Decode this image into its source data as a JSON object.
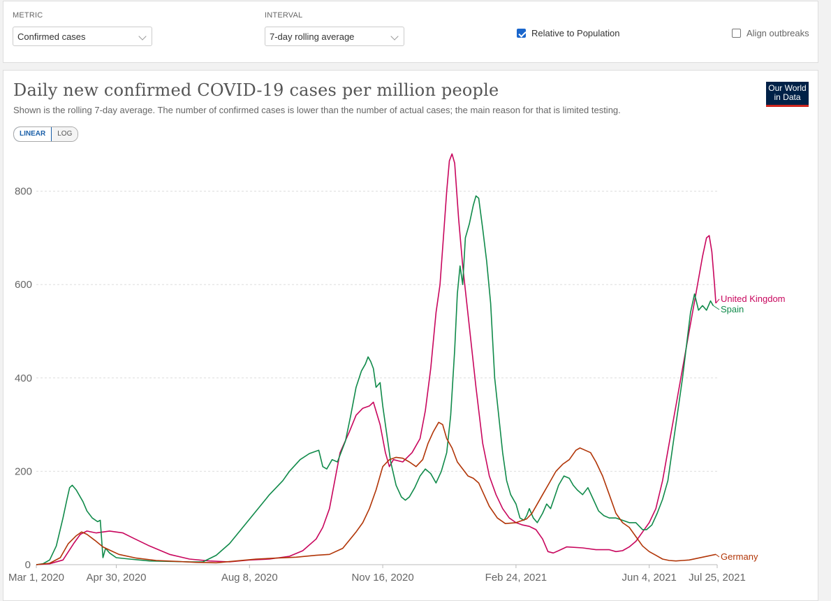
{
  "controls": {
    "metric_label": "METRIC",
    "metric_value": "Confirmed cases",
    "interval_label": "INTERVAL",
    "interval_value": "7-day rolling average",
    "relative_label": "Relative to Population",
    "align_label": "Align outbreaks"
  },
  "header": {
    "title": "Daily new confirmed COVID-19 cases per million people",
    "subtitle": "Shown is the rolling 7-day average. The number of confirmed cases is lower than the number of actual cases; the main reason for that is limited testing.",
    "logo_line1": "Our World",
    "logo_line2": "in Data"
  },
  "scale": {
    "linear": "LINEAR",
    "log": "LOG"
  },
  "colors": {
    "uk": "#c8065d",
    "spain": "#108a4a",
    "germany": "#b13507"
  },
  "chart_data": {
    "type": "line",
    "title": "Daily new confirmed COVID-19 cases per million people",
    "x_ticks": [
      "Mar 1, 2020",
      "Apr 30, 2020",
      "Aug 8, 2020",
      "Nov 16, 2020",
      "Feb 24, 2021",
      "Jun 4, 2021",
      "Jul 25, 2021"
    ],
    "x_tick_days": [
      0,
      60,
      160,
      260,
      360,
      460,
      511
    ],
    "x_range": [
      "Mar 1, 2020",
      "Jul 25, 2021"
    ],
    "y_ticks": [
      0,
      200,
      400,
      600,
      800
    ],
    "ylim": [
      0,
      900
    ],
    "grid": true,
    "legend": "end-of-line labels",
    "series": [
      {
        "name": "United Kingdom",
        "color": "#c8065d",
        "points": [
          [
            0,
            0
          ],
          [
            10,
            2
          ],
          [
            20,
            10
          ],
          [
            28,
            45
          ],
          [
            33,
            65
          ],
          [
            38,
            72
          ],
          [
            45,
            68
          ],
          [
            55,
            72
          ],
          [
            65,
            68
          ],
          [
            72,
            58
          ],
          [
            85,
            40
          ],
          [
            100,
            22
          ],
          [
            115,
            12
          ],
          [
            130,
            8
          ],
          [
            145,
            6
          ],
          [
            160,
            10
          ],
          [
            175,
            12
          ],
          [
            190,
            18
          ],
          [
            200,
            30
          ],
          [
            210,
            55
          ],
          [
            215,
            80
          ],
          [
            220,
            120
          ],
          [
            224,
            180
          ],
          [
            228,
            240
          ],
          [
            235,
            285
          ],
          [
            240,
            320
          ],
          [
            245,
            335
          ],
          [
            250,
            340
          ],
          [
            253,
            348
          ],
          [
            258,
            300
          ],
          [
            262,
            240
          ],
          [
            265,
            210
          ],
          [
            268,
            225
          ],
          [
            275,
            220
          ],
          [
            282,
            240
          ],
          [
            288,
            270
          ],
          [
            292,
            330
          ],
          [
            296,
            420
          ],
          [
            300,
            540
          ],
          [
            303,
            600
          ],
          [
            306,
            720
          ],
          [
            308,
            800
          ],
          [
            310,
            865
          ],
          [
            312,
            880
          ],
          [
            314,
            860
          ],
          [
            317,
            740
          ],
          [
            320,
            640
          ],
          [
            325,
            510
          ],
          [
            330,
            380
          ],
          [
            335,
            260
          ],
          [
            340,
            190
          ],
          [
            345,
            150
          ],
          [
            350,
            120
          ],
          [
            355,
            100
          ],
          [
            360,
            90
          ],
          [
            365,
            85
          ],
          [
            370,
            82
          ],
          [
            375,
            75
          ],
          [
            380,
            55
          ],
          [
            384,
            28
          ],
          [
            388,
            25
          ],
          [
            392,
            30
          ],
          [
            398,
            38
          ],
          [
            410,
            36
          ],
          [
            420,
            32
          ],
          [
            430,
            32
          ],
          [
            435,
            28
          ],
          [
            440,
            30
          ],
          [
            445,
            38
          ],
          [
            450,
            50
          ],
          [
            455,
            70
          ],
          [
            460,
            90
          ],
          [
            465,
            120
          ],
          [
            470,
            180
          ],
          [
            475,
            260
          ],
          [
            480,
            340
          ],
          [
            485,
            420
          ],
          [
            490,
            500
          ],
          [
            495,
            580
          ],
          [
            500,
            660
          ],
          [
            503,
            700
          ],
          [
            505,
            705
          ],
          [
            507,
            670
          ],
          [
            509,
            600
          ],
          [
            510,
            560
          ]
        ]
      },
      {
        "name": "Spain",
        "color": "#108a4a",
        "points": [
          [
            0,
            0
          ],
          [
            5,
            2
          ],
          [
            10,
            10
          ],
          [
            15,
            40
          ],
          [
            20,
            100
          ],
          [
            23,
            140
          ],
          [
            25,
            165
          ],
          [
            27,
            170
          ],
          [
            30,
            160
          ],
          [
            35,
            135
          ],
          [
            38,
            115
          ],
          [
            42,
            100
          ],
          [
            46,
            92
          ],
          [
            48,
            95
          ],
          [
            50,
            15
          ],
          [
            52,
            35
          ],
          [
            55,
            25
          ],
          [
            60,
            15
          ],
          [
            70,
            12
          ],
          [
            85,
            8
          ],
          [
            100,
            7
          ],
          [
            115,
            6
          ],
          [
            125,
            6
          ],
          [
            135,
            20
          ],
          [
            145,
            45
          ],
          [
            155,
            80
          ],
          [
            165,
            115
          ],
          [
            175,
            150
          ],
          [
            185,
            180
          ],
          [
            190,
            200
          ],
          [
            198,
            225
          ],
          [
            205,
            238
          ],
          [
            212,
            245
          ],
          [
            215,
            210
          ],
          [
            218,
            205
          ],
          [
            222,
            225
          ],
          [
            226,
            220
          ],
          [
            232,
            265
          ],
          [
            236,
            320
          ],
          [
            240,
            380
          ],
          [
            244,
            415
          ],
          [
            247,
            430
          ],
          [
            249,
            445
          ],
          [
            251,
            435
          ],
          [
            253,
            420
          ],
          [
            255,
            380
          ],
          [
            258,
            390
          ],
          [
            260,
            340
          ],
          [
            263,
            280
          ],
          [
            266,
            220
          ],
          [
            270,
            170
          ],
          [
            274,
            145
          ],
          [
            277,
            138
          ],
          [
            280,
            145
          ],
          [
            284,
            165
          ],
          [
            288,
            190
          ],
          [
            292,
            205
          ],
          [
            296,
            195
          ],
          [
            300,
            175
          ],
          [
            304,
            200
          ],
          [
            308,
            240
          ],
          [
            311,
            320
          ],
          [
            314,
            460
          ],
          [
            316,
            580
          ],
          [
            318,
            640
          ],
          [
            320,
            600
          ],
          [
            322,
            700
          ],
          [
            325,
            730
          ],
          [
            328,
            770
          ],
          [
            330,
            790
          ],
          [
            332,
            785
          ],
          [
            335,
            720
          ],
          [
            338,
            650
          ],
          [
            341,
            560
          ],
          [
            344,
            400
          ],
          [
            347,
            320
          ],
          [
            350,
            240
          ],
          [
            353,
            180
          ],
          [
            356,
            150
          ],
          [
            360,
            130
          ],
          [
            363,
            100
          ],
          [
            366,
            95
          ],
          [
            368,
            105
          ],
          [
            370,
            120
          ],
          [
            373,
            100
          ],
          [
            376,
            90
          ],
          [
            380,
            110
          ],
          [
            383,
            130
          ],
          [
            386,
            120
          ],
          [
            389,
            145
          ],
          [
            392,
            170
          ],
          [
            396,
            190
          ],
          [
            400,
            185
          ],
          [
            403,
            170
          ],
          [
            406,
            160
          ],
          [
            410,
            150
          ],
          [
            414,
            165
          ],
          [
            418,
            140
          ],
          [
            422,
            115
          ],
          [
            426,
            105
          ],
          [
            430,
            100
          ],
          [
            435,
            100
          ],
          [
            440,
            95
          ],
          [
            445,
            90
          ],
          [
            450,
            90
          ],
          [
            455,
            75
          ],
          [
            458,
            75
          ],
          [
            462,
            85
          ],
          [
            466,
            110
          ],
          [
            470,
            140
          ],
          [
            474,
            180
          ],
          [
            478,
            260
          ],
          [
            482,
            340
          ],
          [
            485,
            400
          ],
          [
            488,
            470
          ],
          [
            491,
            540
          ],
          [
            494,
            580
          ],
          [
            497,
            545
          ],
          [
            500,
            555
          ],
          [
            503,
            545
          ],
          [
            506,
            565
          ],
          [
            508,
            555
          ]
        ]
      },
      {
        "name": "Germany",
        "color": "#b13507",
        "points": [
          [
            0,
            0
          ],
          [
            10,
            3
          ],
          [
            18,
            15
          ],
          [
            24,
            45
          ],
          [
            30,
            62
          ],
          [
            34,
            70
          ],
          [
            38,
            65
          ],
          [
            44,
            52
          ],
          [
            50,
            38
          ],
          [
            56,
            30
          ],
          [
            62,
            22
          ],
          [
            75,
            14
          ],
          [
            90,
            9
          ],
          [
            105,
            7
          ],
          [
            120,
            5
          ],
          [
            135,
            4
          ],
          [
            150,
            8
          ],
          [
            165,
            12
          ],
          [
            180,
            14
          ],
          [
            195,
            16
          ],
          [
            210,
            20
          ],
          [
            220,
            22
          ],
          [
            230,
            35
          ],
          [
            240,
            70
          ],
          [
            245,
            90
          ],
          [
            250,
            120
          ],
          [
            255,
            160
          ],
          [
            260,
            210
          ],
          [
            265,
            225
          ],
          [
            270,
            230
          ],
          [
            275,
            228
          ],
          [
            280,
            220
          ],
          [
            285,
            210
          ],
          [
            290,
            225
          ],
          [
            294,
            260
          ],
          [
            298,
            285
          ],
          [
            302,
            305
          ],
          [
            305,
            300
          ],
          [
            308,
            270
          ],
          [
            312,
            250
          ],
          [
            316,
            220
          ],
          [
            320,
            205
          ],
          [
            324,
            190
          ],
          [
            328,
            185
          ],
          [
            332,
            175
          ],
          [
            336,
            150
          ],
          [
            340,
            125
          ],
          [
            346,
            100
          ],
          [
            352,
            88
          ],
          [
            360,
            90
          ],
          [
            368,
            98
          ],
          [
            372,
            110
          ],
          [
            376,
            130
          ],
          [
            380,
            150
          ],
          [
            385,
            175
          ],
          [
            390,
            200
          ],
          [
            395,
            215
          ],
          [
            400,
            225
          ],
          [
            405,
            245
          ],
          [
            408,
            250
          ],
          [
            412,
            245
          ],
          [
            416,
            240
          ],
          [
            420,
            220
          ],
          [
            425,
            190
          ],
          [
            430,
            150
          ],
          [
            435,
            110
          ],
          [
            440,
            90
          ],
          [
            445,
            80
          ],
          [
            450,
            60
          ],
          [
            455,
            40
          ],
          [
            460,
            28
          ],
          [
            465,
            20
          ],
          [
            470,
            12
          ],
          [
            475,
            9
          ],
          [
            480,
            8
          ],
          [
            485,
            9
          ],
          [
            490,
            10
          ],
          [
            495,
            13
          ],
          [
            500,
            16
          ],
          [
            505,
            19
          ],
          [
            510,
            22
          ]
        ]
      }
    ]
  }
}
